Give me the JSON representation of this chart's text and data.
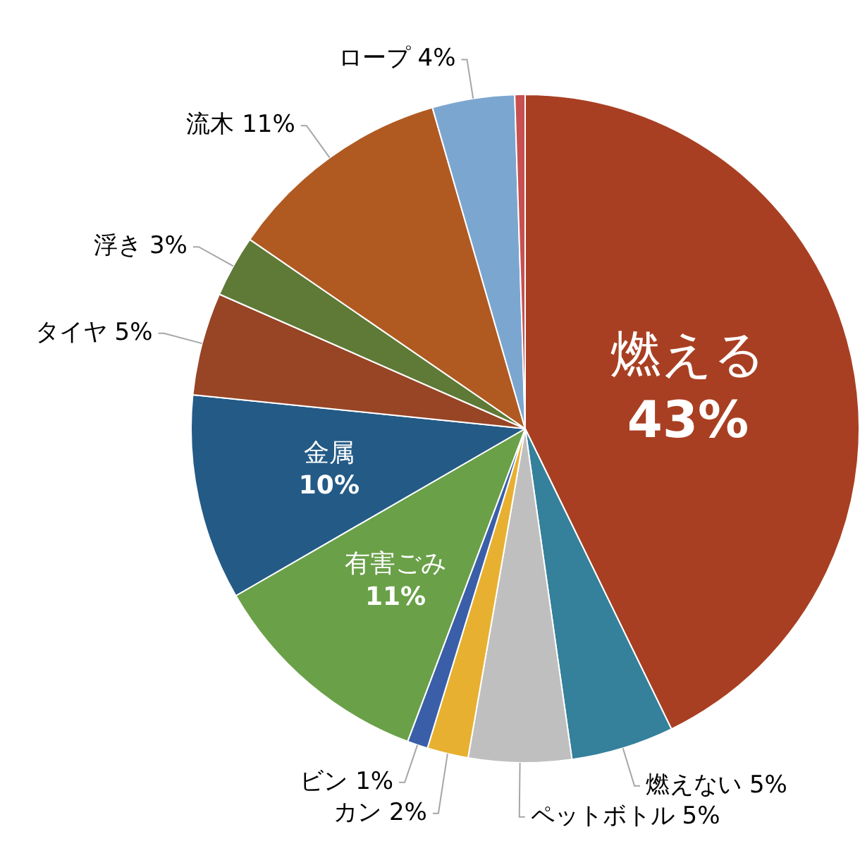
{
  "chart_data": {
    "type": "pie",
    "categories": [
      "燃える",
      "燃えない",
      "ペットボトル",
      "カン",
      "ビン",
      "有害ごみ",
      "金属",
      "タイヤ",
      "浮き",
      "流木",
      "ロープ",
      null
    ],
    "values": [
      43,
      5,
      5,
      2,
      1,
      11,
      10,
      5,
      3,
      11,
      4,
      0.5
    ],
    "colors": [
      "#a93f22",
      "#35809a",
      "#bfbfbf",
      "#e8b030",
      "#3a5fa8",
      "#6aa048",
      "#245a86",
      "#984526",
      "#5e7a36",
      "#b05a22",
      "#7ba6d0",
      "#c85050"
    ],
    "value_labels": [
      "43%",
      "5%",
      "5%",
      "2%",
      "1%",
      "11%",
      "10%",
      "5%",
      "3%",
      "11%",
      "4%",
      null
    ],
    "legend": false
  }
}
